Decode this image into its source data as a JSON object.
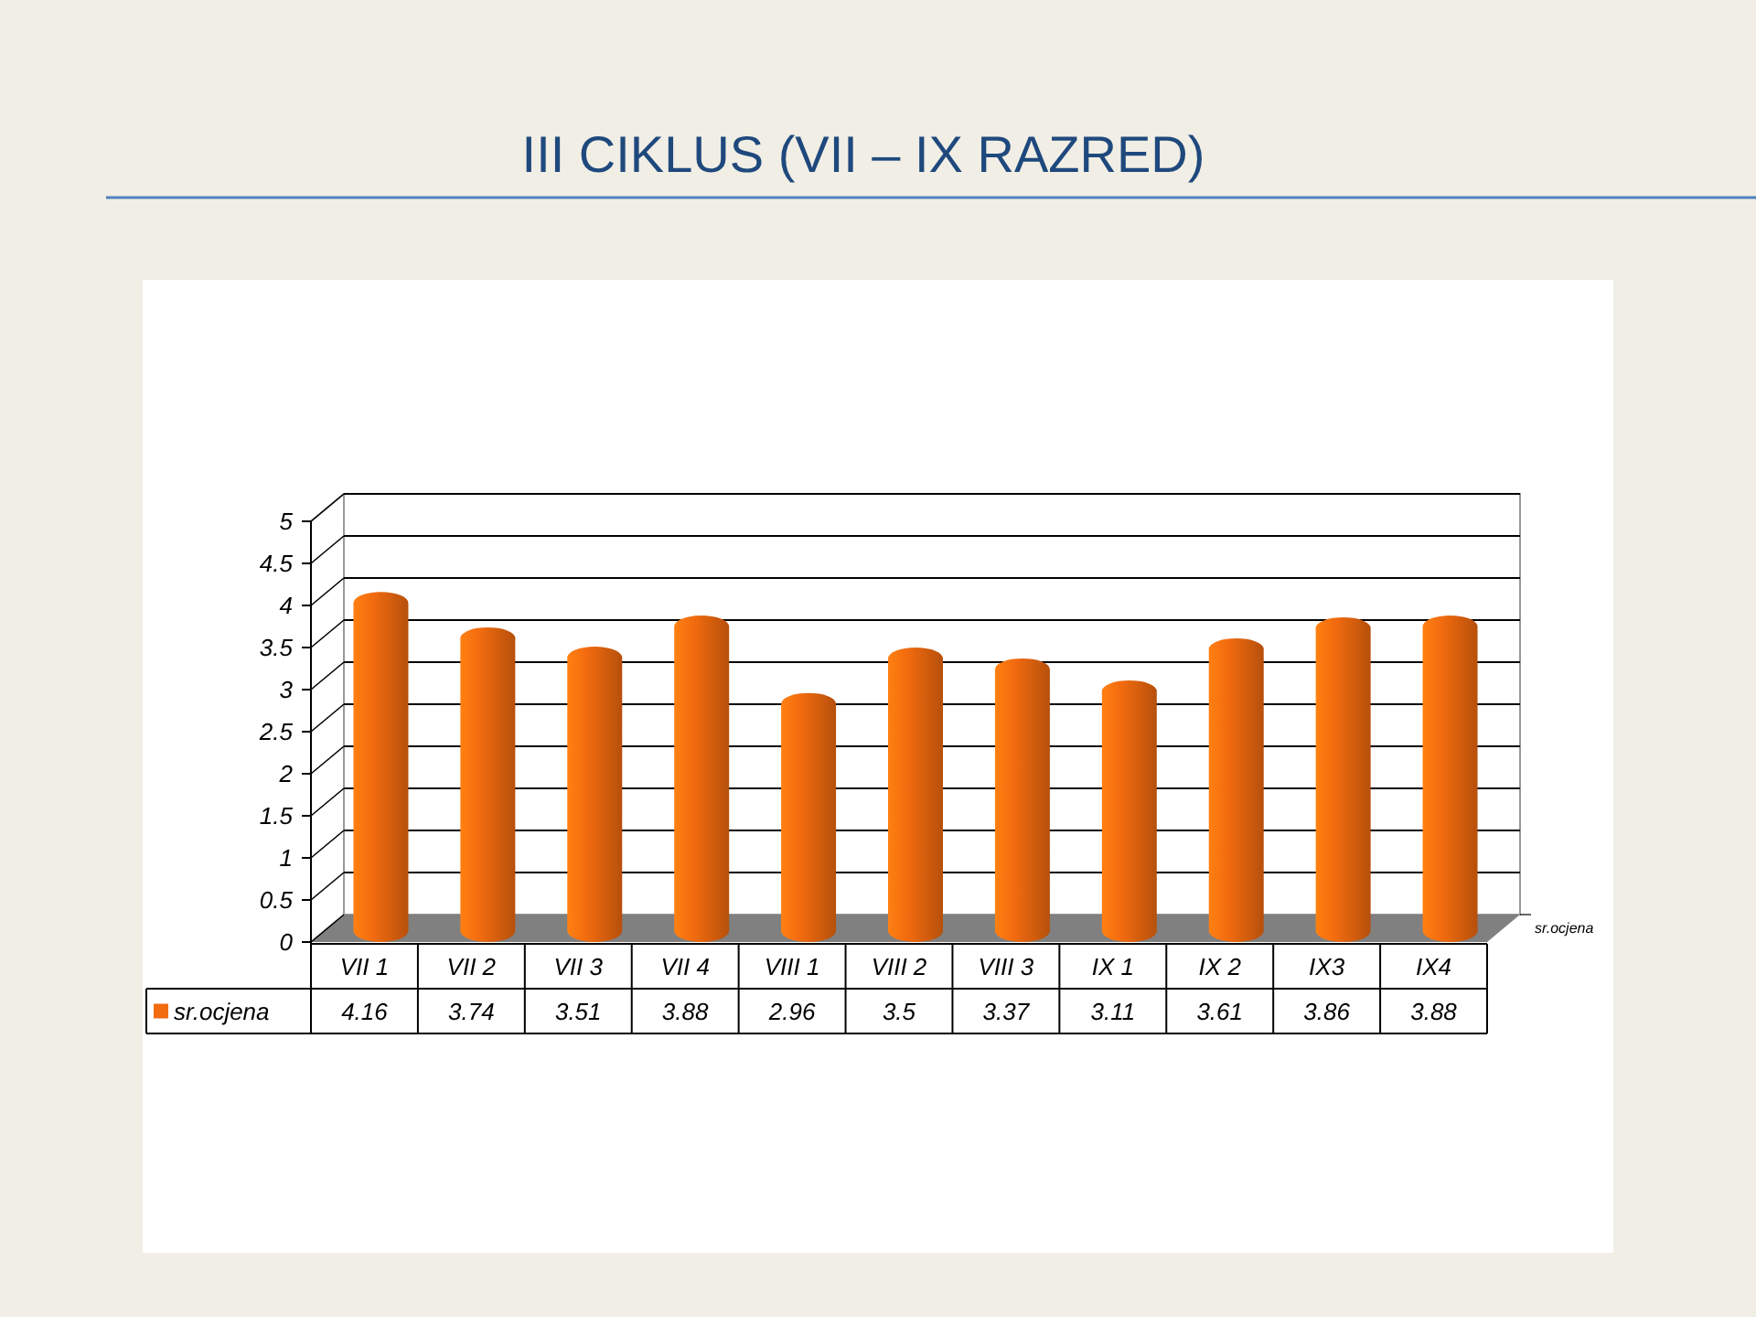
{
  "chart_data": {
    "type": "bar",
    "title": "III CIKLUS (VII – IX RAZRED)",
    "categories": [
      "VII 1",
      "VII 2",
      "VII 3",
      "VII 4",
      "VIII 1",
      "VIII 2",
      "VIII 3",
      "IX 1",
      "IX 2",
      "IX3",
      "IX4"
    ],
    "series": [
      {
        "name": "sr.ocjena",
        "color": "#f26b0f",
        "values": [
          4.16,
          3.74,
          3.51,
          3.88,
          2.96,
          3.5,
          3.37,
          3.11,
          3.61,
          3.86,
          3.88
        ]
      }
    ],
    "ylim": [
      0,
      5
    ],
    "yticks": [
      0,
      0.5,
      1,
      1.5,
      2,
      2.5,
      3,
      3.5,
      4,
      4.5,
      5
    ],
    "grid": "y",
    "data_labels": true,
    "legend": "bottom"
  }
}
